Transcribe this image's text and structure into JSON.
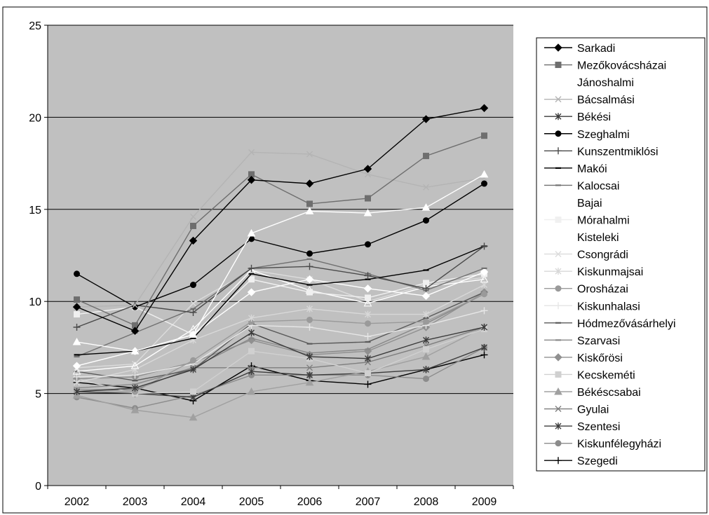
{
  "chart_data": {
    "type": "line",
    "x": [
      "2002",
      "2003",
      "2004",
      "2005",
      "2006",
      "2007",
      "2008",
      "2009"
    ],
    "ylim": [
      0,
      25
    ],
    "y_ticks": [
      "0",
      "5",
      "10",
      "15",
      "20",
      "25"
    ],
    "grid": true,
    "legend_position": "right",
    "plot_background": "#c0c0c0",
    "series": [
      {
        "name": "Sarkadi",
        "values": [
          9.7,
          8.4,
          13.3,
          16.6,
          16.4,
          17.2,
          19.9,
          20.5
        ],
        "color": "#000000",
        "marker": "diamond",
        "filled": true
      },
      {
        "name": "Mezőkovácsházai",
        "values": [
          10.1,
          8.7,
          14.1,
          16.9,
          15.3,
          15.6,
          17.9,
          19.0
        ],
        "color": "#6e6e6e",
        "marker": "square",
        "filled": true
      },
      {
        "name": "Jánoshalmi",
        "values": [
          7.8,
          7.3,
          8.2,
          13.7,
          14.9,
          14.8,
          15.1,
          16.9
        ],
        "color": "#ffffff",
        "marker": "triangle",
        "filled": true
      },
      {
        "name": "Bácsalmási",
        "values": [
          9.7,
          9.8,
          14.6,
          18.1,
          18.0,
          16.9,
          16.2,
          16.7
        ],
        "color": "#b4b4b4",
        "marker": "x",
        "filled": false
      },
      {
        "name": "Békési",
        "values": [
          5.1,
          5.3,
          6.3,
          8.3,
          7.0,
          6.9,
          7.9,
          8.6
        ],
        "color": "#3a3a3a",
        "marker": "star",
        "filled": false
      },
      {
        "name": "Szeghalmi",
        "values": [
          11.5,
          9.7,
          10.9,
          13.4,
          12.6,
          13.1,
          14.4,
          16.4
        ],
        "color": "#000000",
        "marker": "circle",
        "filled": true
      },
      {
        "name": "Kunszentmiklósi",
        "values": [
          8.6,
          9.8,
          9.4,
          11.8,
          11.9,
          11.4,
          10.7,
          13.0
        ],
        "color": "#4a4a4a",
        "marker": "plus",
        "filled": false
      },
      {
        "name": "Makói",
        "values": [
          7.1,
          7.3,
          8.0,
          11.5,
          10.9,
          11.2,
          11.7,
          13.0
        ],
        "color": "#000000",
        "marker": "dash",
        "filled": false
      },
      {
        "name": "Kalocsai",
        "values": [
          7.0,
          8.3,
          9.6,
          11.8,
          12.3,
          11.5,
          10.6,
          11.8
        ],
        "color": "#707070",
        "marker": "dash",
        "filled": false
      },
      {
        "name": "Bajai",
        "values": [
          6.5,
          7.3,
          8.2,
          10.5,
          11.2,
          10.7,
          10.3,
          11.6
        ],
        "color": "#ffffff",
        "marker": "diamond",
        "filled": true
      },
      {
        "name": "Mórahalmi",
        "values": [
          9.3,
          9.7,
          8.2,
          11.2,
          10.5,
          10.2,
          11.0,
          11.5
        ],
        "color": "#f0f0f0",
        "marker": "square",
        "filled": true
      },
      {
        "name": "Kisteleki",
        "values": [
          6.2,
          6.5,
          8.5,
          11.7,
          10.6,
          9.9,
          10.8,
          11.2
        ],
        "color": "#ffffff",
        "marker": "triangle",
        "filled": false
      },
      {
        "name": "Csongrádi",
        "values": [
          6.4,
          6.6,
          9.9,
          11.7,
          11.2,
          10.0,
          10.9,
          11.3
        ],
        "color": "#dcdcdc",
        "marker": "x",
        "filled": false
      },
      {
        "name": "Kiskunmajsai",
        "values": [
          5.6,
          6.3,
          7.9,
          9.1,
          9.6,
          9.3,
          9.3,
          10.9
        ],
        "color": "#d8d8d8",
        "marker": "star",
        "filled": false
      },
      {
        "name": "Orosházai",
        "values": [
          5.2,
          5.1,
          6.8,
          8.9,
          9.0,
          8.8,
          8.9,
          10.4
        ],
        "color": "#9a9a9a",
        "marker": "circle",
        "filled": true
      },
      {
        "name": "Kiskunhalasi",
        "values": [
          5.9,
          6.0,
          6.6,
          8.7,
          8.6,
          8.1,
          8.7,
          9.5
        ],
        "color": "#e6e6e6",
        "marker": "plus",
        "filled": false
      },
      {
        "name": "Hódmezővásárhelyi",
        "values": [
          6.2,
          5.7,
          6.3,
          8.8,
          7.7,
          7.8,
          9.1,
          10.5
        ],
        "color": "#5a5a5a",
        "marker": "dash",
        "filled": false
      },
      {
        "name": "Szarvasi",
        "values": [
          5.3,
          5.5,
          6.4,
          8.0,
          7.2,
          7.4,
          8.8,
          10.4
        ],
        "color": "#888888",
        "marker": "dash",
        "filled": false
      },
      {
        "name": "Kiskőrösi",
        "values": [
          5.8,
          5.9,
          6.7,
          7.9,
          7.1,
          7.3,
          8.6,
          10.5
        ],
        "color": "#909090",
        "marker": "diamond",
        "filled": true
      },
      {
        "name": "Kecskeméti",
        "values": [
          5.8,
          5.0,
          5.1,
          7.3,
          6.9,
          6.1,
          7.4,
          8.5
        ],
        "color": "#d0d0d0",
        "marker": "square",
        "filled": true
      },
      {
        "name": "Békéscsabai",
        "values": [
          4.9,
          4.1,
          3.7,
          5.1,
          5.6,
          6.2,
          7.0,
          8.6
        ],
        "color": "#a0a0a0",
        "marker": "triangle",
        "filled": true
      },
      {
        "name": "Gyulai",
        "values": [
          5.2,
          5.2,
          6.4,
          6.4,
          6.4,
          6.7,
          7.6,
          8.6
        ],
        "color": "#7e7e7e",
        "marker": "x",
        "filled": false
      },
      {
        "name": "Szentesi",
        "values": [
          5.1,
          5.0,
          4.8,
          6.2,
          6.0,
          6.1,
          6.3,
          7.5
        ],
        "color": "#3c3c3c",
        "marker": "star",
        "filled": false
      },
      {
        "name": "Kiskunfélegyházi",
        "values": [
          4.8,
          4.2,
          4.9,
          6.0,
          6.0,
          6.0,
          5.8,
          7.5
        ],
        "color": "#8c8c8c",
        "marker": "circle",
        "filled": true
      },
      {
        "name": "Szegedi",
        "values": [
          5.6,
          5.3,
          4.6,
          6.5,
          5.7,
          5.5,
          6.3,
          7.1
        ],
        "color": "#000000",
        "marker": "plus",
        "filled": false
      }
    ]
  }
}
